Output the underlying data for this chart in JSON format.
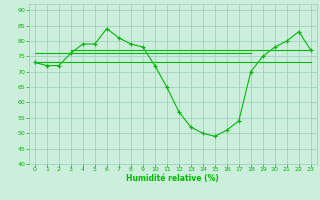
{
  "x": [
    0,
    1,
    2,
    3,
    4,
    5,
    6,
    7,
    8,
    9,
    10,
    11,
    12,
    13,
    14,
    15,
    16,
    17,
    18,
    19,
    20,
    21,
    22,
    23
  ],
  "y_main": [
    73,
    72,
    72,
    76,
    79,
    79,
    84,
    81,
    79,
    78,
    72,
    65,
    57,
    52,
    50,
    49,
    51,
    54,
    70,
    75,
    78,
    80,
    83,
    77
  ],
  "y_line1_x": [
    0,
    23
  ],
  "y_line1_y": [
    73,
    73
  ],
  "y_line2_x": [
    0,
    18
  ],
  "y_line2_y": [
    76,
    76
  ],
  "y_line3_x": [
    3,
    23
  ],
  "y_line3_y": [
    77,
    77
  ],
  "line_color": "#00bb00",
  "bg_color": "#cceedd",
  "grid_color": "#99ccbb",
  "xlabel": "Humidité relative (%)",
  "ylim": [
    40,
    92
  ],
  "xlim": [
    -0.5,
    23.5
  ],
  "yticks": [
    40,
    45,
    50,
    55,
    60,
    65,
    70,
    75,
    80,
    85,
    90
  ],
  "xticks": [
    0,
    1,
    2,
    3,
    4,
    5,
    6,
    7,
    8,
    9,
    10,
    11,
    12,
    13,
    14,
    15,
    16,
    17,
    18,
    19,
    20,
    21,
    22,
    23
  ]
}
